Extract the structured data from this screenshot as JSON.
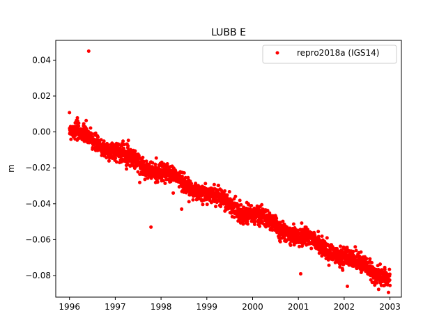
{
  "chart_data": {
    "type": "scatter",
    "title": "LUBB E",
    "xlabel": "",
    "ylabel": "m",
    "xlim": [
      1995.7,
      2003.25
    ],
    "ylim": [
      -0.092,
      0.051
    ],
    "xticks": [
      1996,
      1997,
      1998,
      1999,
      2000,
      2001,
      2002,
      2003
    ],
    "xtick_labels": [
      "1996",
      "1997",
      "1998",
      "1999",
      "2000",
      "2001",
      "2002",
      "2003"
    ],
    "yticks": [
      -0.08,
      -0.06,
      -0.04,
      -0.02,
      0.0,
      0.02,
      0.04
    ],
    "ytick_labels": [
      "−0.08",
      "−0.06",
      "−0.04",
      "−0.02",
      "0.00",
      "0.02",
      "0.04"
    ],
    "grid": false,
    "legend_position": "top-right",
    "series": [
      {
        "name": "repro2018a (IGS14)",
        "color": "#ff0000",
        "marker": "circle",
        "trend": {
          "x": [
            1996.0,
            2003.0
          ],
          "y": [
            0.001,
            -0.0815
          ]
        },
        "x_range": [
          1996.0,
          2003.0
        ],
        "scatter_std": 0.0025,
        "outliers": [
          {
            "x": 1996.42,
            "y": 0.045
          },
          {
            "x": 1997.78,
            "y": -0.053
          },
          {
            "x": 1998.45,
            "y": -0.043
          },
          {
            "x": 2001.05,
            "y": -0.079
          },
          {
            "x": 2002.07,
            "y": -0.086
          }
        ]
      }
    ]
  }
}
